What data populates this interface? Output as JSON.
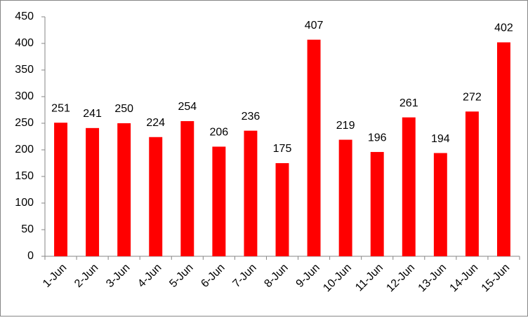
{
  "chart_data": {
    "type": "bar",
    "categories": [
      "1-Jun",
      "2-Jun",
      "3-Jun",
      "4-Jun",
      "5-Jun",
      "6-Jun",
      "7-Jun",
      "8-Jun",
      "9-Jun",
      "10-Jun",
      "11-Jun",
      "12-Jun",
      "13-Jun",
      "14-Jun",
      "15-Jun"
    ],
    "values": [
      251,
      241,
      250,
      224,
      254,
      206,
      236,
      175,
      407,
      219,
      196,
      261,
      194,
      272,
      402
    ],
    "color": "#ff0000",
    "ylim": [
      0,
      450
    ],
    "yticks": [
      0,
      50,
      100,
      150,
      200,
      250,
      300,
      350,
      400,
      450
    ],
    "grid": false
  }
}
